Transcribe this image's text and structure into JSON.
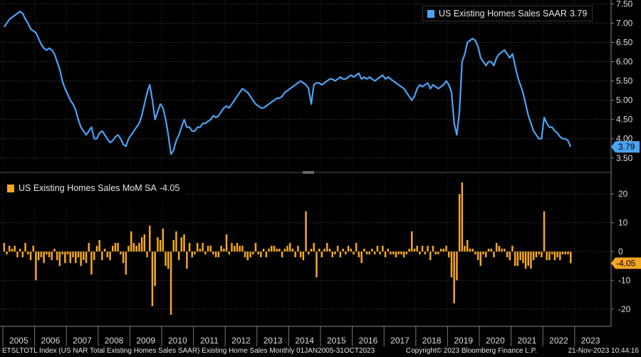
{
  "chart_data": [
    {
      "type": "line",
      "legend": "US Existing Homes Sales SAAR",
      "legend_value": "3.79",
      "last_value_label": "3.79",
      "color": "#4ba3f5",
      "ylim": [
        3.2,
        7.6
      ],
      "y_ticks": [
        "3.50",
        "4.00",
        "4.50",
        "5.00",
        "5.50",
        "6.00",
        "6.50",
        "7.00",
        "7.50"
      ],
      "y_tick_values": [
        3.5,
        4.0,
        4.5,
        5.0,
        5.5,
        6.0,
        6.5,
        7.0,
        7.5
      ],
      "x_start": "2005-01",
      "x_end": "2023-10",
      "series": [
        {
          "values": [
            6.9,
            7.0,
            7.1,
            7.15,
            7.2,
            7.25,
            7.3,
            7.25,
            7.1,
            7.0,
            6.85,
            6.8,
            6.75,
            6.6,
            6.45,
            6.35,
            6.3,
            6.35,
            6.3,
            6.2,
            6.0,
            5.8,
            5.5,
            5.3,
            5.15,
            5.0,
            4.9,
            4.75,
            4.5,
            4.3,
            4.2,
            4.1,
            4.2,
            4.3,
            4.0,
            4.0,
            4.15,
            4.2,
            4.1,
            4.0,
            3.9,
            3.95,
            4.05,
            4.1,
            4.0,
            3.85,
            3.8,
            4.0,
            4.1,
            4.2,
            4.3,
            4.4,
            4.6,
            4.9,
            5.2,
            5.4,
            5.0,
            4.5,
            4.7,
            4.9,
            4.8,
            4.5,
            4.1,
            3.6,
            3.7,
            3.95,
            4.1,
            4.3,
            4.5,
            4.3,
            4.3,
            4.2,
            4.2,
            4.3,
            4.3,
            4.4,
            4.4,
            4.45,
            4.5,
            4.6,
            4.55,
            4.6,
            4.7,
            4.8,
            4.85,
            4.8,
            4.9,
            5.0,
            5.1,
            5.2,
            5.3,
            5.25,
            5.2,
            5.1,
            5.0,
            4.9,
            4.85,
            4.8,
            4.8,
            4.85,
            4.9,
            4.95,
            5.0,
            5.05,
            5.05,
            5.1,
            5.2,
            5.25,
            5.3,
            5.35,
            5.4,
            5.45,
            5.5,
            5.45,
            5.4,
            5.3,
            4.9,
            5.4,
            5.45,
            5.45,
            5.4,
            5.45,
            5.5,
            5.55,
            5.55,
            5.5,
            5.55,
            5.6,
            5.55,
            5.55,
            5.6,
            5.65,
            5.6,
            5.65,
            5.7,
            5.55,
            5.6,
            5.55,
            5.6,
            5.55,
            5.5,
            5.55,
            5.6,
            5.65,
            5.55,
            5.6,
            5.55,
            5.5,
            5.45,
            5.4,
            5.35,
            5.3,
            5.2,
            5.1,
            5.0,
            5.1,
            5.3,
            5.4,
            5.35,
            5.4,
            5.45,
            5.3,
            5.4,
            5.35,
            5.3,
            5.35,
            5.4,
            5.5,
            5.4,
            5.2,
            4.4,
            4.1,
            4.7,
            6.0,
            6.2,
            6.5,
            6.55,
            6.6,
            6.55,
            6.4,
            6.1,
            6.0,
            5.9,
            6.0,
            6.0,
            5.9,
            6.1,
            6.2,
            6.25,
            6.3,
            6.2,
            6.1,
            6.2,
            5.9,
            5.6,
            5.4,
            5.2,
            4.9,
            4.6,
            4.4,
            4.2,
            4.1,
            4.0,
            4.0,
            4.55,
            4.4,
            4.3,
            4.3,
            4.2,
            4.15,
            4.05,
            4.0,
            4.0,
            3.95,
            3.79
          ]
        }
      ]
    },
    {
      "type": "bar",
      "legend": "US Existing Homes Sales MoM SA",
      "legend_value": "-4.05",
      "last_value_label": "-4.05",
      "color": "#f5a623",
      "ylim": [
        -26,
        26
      ],
      "y_ticks": [
        "20",
        "10",
        "0",
        "-10",
        "-20"
      ],
      "y_tick_values": [
        20,
        10,
        0,
        -10,
        -20
      ],
      "x_start": "2005-01",
      "x_end": "2023-10",
      "series": [
        {
          "values": [
            3,
            -1,
            2,
            1,
            2,
            -2,
            1,
            -2,
            3,
            -1,
            -3,
            2,
            -10,
            -3,
            -2,
            -4,
            -1,
            -2,
            -3,
            1,
            -3,
            -5,
            -1,
            -4,
            -1,
            -4,
            -2,
            -4,
            -2,
            -5,
            -3,
            -4,
            3,
            -8,
            -3,
            2,
            4,
            -3,
            1,
            -2,
            -3,
            2,
            3,
            3,
            -1,
            -4,
            -8,
            2,
            7,
            3,
            2,
            3,
            5,
            6,
            -2,
            9,
            -19,
            -12,
            5,
            4,
            8,
            -5,
            -6,
            -22,
            4,
            7,
            -3,
            5,
            6,
            -6,
            3,
            -2,
            -1,
            3,
            1,
            3,
            -1,
            2,
            2,
            -1,
            -2,
            -2,
            2,
            1,
            6,
            -1,
            3,
            2,
            3,
            2,
            2,
            -2,
            -3,
            -2,
            -1,
            3,
            -1,
            -2,
            1,
            -2,
            1,
            2,
            2,
            1,
            1,
            -2,
            1,
            2,
            3,
            1,
            -2,
            2,
            -2,
            -3,
            14,
            -1,
            1,
            3,
            -9,
            1,
            -2,
            1,
            3,
            1,
            -2,
            -1,
            2,
            -2,
            1,
            -1,
            2,
            1,
            -1,
            3,
            -2,
            -4,
            1,
            -1,
            -1,
            1,
            -1,
            2,
            -1,
            2,
            -2,
            1,
            -1,
            -1,
            -2,
            -1,
            -1,
            -2,
            -1,
            1,
            7,
            1,
            2,
            -1,
            2,
            -1,
            2,
            -3,
            2,
            -1,
            -1,
            1,
            1,
            2,
            -2,
            -9,
            -18,
            -10,
            20,
            24,
            2,
            4,
            1,
            1,
            -1,
            -3,
            -5,
            -1,
            -2,
            1,
            1,
            -2,
            3,
            2,
            1,
            1,
            -2,
            -3,
            2,
            -5,
            -5,
            -3,
            -4,
            -6,
            -5,
            -6,
            -3,
            -2,
            -1,
            -2,
            14,
            -3,
            -3,
            -1,
            -3,
            -2,
            -3,
            -1,
            -1,
            -1,
            -4.05
          ]
        }
      ]
    }
  ],
  "x_axis": {
    "years": [
      "2005",
      "2006",
      "2007",
      "2008",
      "2009",
      "2010",
      "2011",
      "2012",
      "2013",
      "2014",
      "2015",
      "2016",
      "2017",
      "2018",
      "2019",
      "2020",
      "2021",
      "2022",
      "2023"
    ]
  },
  "footer": {
    "left": "ETSLTOTL Index (US NAR Total Existing Homes Sales SAAR) Existing Home Sales  Monthly 01JAN2005-31OCT2023",
    "center": "Copyright© 2023 Bloomberg Finance L.P.",
    "right": "21-Nov-2023 10:44:16"
  }
}
